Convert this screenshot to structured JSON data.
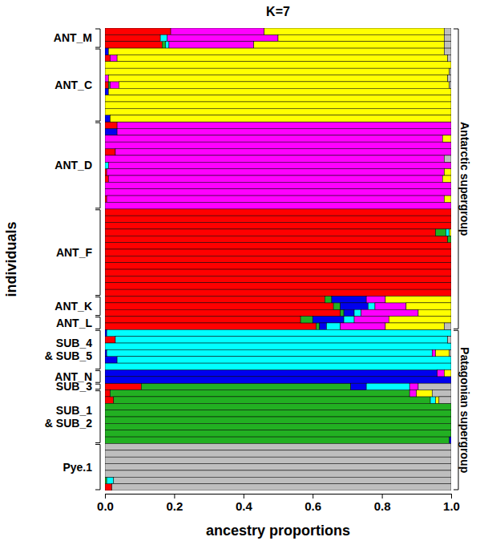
{
  "chart_data": {
    "type": "bar",
    "title": "K=7",
    "x_label": "ancestry proportions",
    "y_label": "individuals",
    "orientation": "horizontal",
    "stacked": true,
    "tick_labels": "x",
    "xlim": [
      0,
      1
    ],
    "xticks": [
      {
        "value": 0,
        "label": "0.0"
      },
      {
        "value": 0.2,
        "label": "0.2"
      },
      {
        "value": 0.4,
        "label": "0.4"
      },
      {
        "value": 0.6,
        "label": "0.6"
      },
      {
        "value": 0.8,
        "label": "0.8"
      },
      {
        "value": 1,
        "label": "1.0"
      }
    ],
    "categories": [
      null,
      null,
      null,
      null,
      null,
      null,
      null,
      null,
      null,
      null,
      null,
      null,
      null,
      null,
      null,
      null,
      null,
      null,
      null,
      null,
      null,
      null,
      null,
      null,
      null,
      null,
      null,
      null,
      null,
      null,
      null,
      null,
      null,
      null,
      null,
      null,
      null,
      null,
      null,
      null,
      null,
      null,
      null,
      null,
      null,
      null,
      null,
      null,
      null,
      null,
      null,
      null,
      null,
      null,
      null,
      null,
      null,
      null,
      null,
      null,
      null,
      null,
      null,
      null,
      null,
      null,
      null,
      null,
      null
    ],
    "series": [
      {
        "color": "#ff0000",
        "values": [
          0.19,
          0.16,
          0.165,
          0,
          0.015,
          0,
          0,
          0,
          0.01,
          0,
          0,
          0,
          0,
          0,
          0.035,
          0,
          0,
          0,
          0.03,
          0,
          0,
          0.005,
          0.01,
          0,
          0,
          0.005,
          0,
          1,
          1,
          1,
          0.955,
          0.99,
          1,
          1,
          1,
          1,
          1,
          1,
          1,
          1,
          0.635,
          0.66,
          0.68,
          0.565,
          0.61,
          0,
          0.03,
          0,
          0,
          0,
          0,
          0,
          0,
          0.105,
          0.015,
          0.025,
          0,
          0,
          0,
          0,
          0,
          0,
          0,
          0,
          0,
          0,
          0,
          0,
          0.02
        ]
      },
      {
        "color": "#22b022",
        "values": [
          0,
          0,
          0.01,
          0,
          0,
          0,
          0,
          0,
          0.005,
          0,
          0,
          0,
          0,
          0,
          0,
          0,
          0,
          0,
          0,
          0,
          0,
          0,
          0,
          0,
          0,
          0,
          0,
          0,
          0,
          0,
          0.03,
          0.01,
          0,
          0,
          0,
          0,
          0,
          0,
          0,
          0,
          0.02,
          0.02,
          0.01,
          0.035,
          0.01,
          0,
          0,
          0,
          0,
          0,
          0,
          0,
          0,
          0.605,
          0.865,
          0.915,
          1,
          1,
          1,
          1,
          1,
          0.995,
          0,
          0,
          0,
          0,
          0,
          0.005,
          0
        ]
      },
      {
        "color": "#0000ee",
        "values": [
          0,
          0,
          0,
          0.01,
          0,
          0,
          0,
          0,
          0,
          0.01,
          0,
          0,
          0,
          0.015,
          0,
          0.035,
          0,
          0,
          0,
          0,
          0,
          0,
          0,
          0,
          0,
          0,
          0,
          0,
          0,
          0,
          0,
          0,
          0,
          0,
          0,
          0,
          0,
          0,
          0,
          0,
          0.1,
          0.08,
          0.03,
          0.09,
          0.02,
          0.005,
          0,
          0,
          0.005,
          0.035,
          0,
          0.96,
          1,
          0.045,
          0,
          0,
          0,
          0,
          0,
          0,
          0,
          0.005,
          0,
          0,
          0,
          0,
          0,
          0,
          0
        ]
      },
      {
        "color": "#00ffff",
        "values": [
          0,
          0.02,
          0.01,
          0,
          0,
          0,
          0,
          0,
          0,
          0,
          0,
          0,
          0,
          0,
          0,
          0,
          0,
          0,
          0,
          0,
          0.01,
          0,
          0,
          0,
          0,
          0,
          0,
          0,
          0,
          0,
          0.01,
          0,
          0,
          0,
          0,
          0,
          0,
          0,
          0,
          0,
          0,
          0.02,
          0.02,
          0.03,
          0.04,
          0.995,
          0.96,
          1,
          0.94,
          0.965,
          1,
          0,
          0,
          0.125,
          0,
          0.015,
          0,
          0,
          0,
          0,
          0,
          0,
          0,
          0,
          0,
          0,
          0,
          0.02,
          0
        ]
      },
      {
        "color": "#ff00ff",
        "values": [
          0.27,
          0.32,
          0.245,
          0,
          0.02,
          0,
          0,
          0.01,
          0.025,
          0,
          0,
          0,
          0,
          0,
          0.965,
          0.965,
          0.975,
          1,
          0.97,
          0.98,
          0.99,
          0.975,
          0.965,
          1,
          1,
          0.975,
          1,
          0,
          0,
          0,
          0,
          0,
          0,
          0,
          0,
          0,
          0,
          0,
          0,
          0,
          0.055,
          0.09,
          0.165,
          0.1,
          0.13,
          0,
          0,
          0,
          0.01,
          0,
          0,
          0.02,
          0,
          0.025,
          0.02,
          0,
          0,
          0,
          0,
          0,
          0,
          0,
          0,
          0,
          0,
          0,
          0,
          0,
          0
        ]
      },
      {
        "color": "#ffff00",
        "values": [
          0.52,
          0.48,
          0.55,
          0.97,
          0.955,
          1,
          0.995,
          0.98,
          0.955,
          0.99,
          1,
          1,
          1,
          0.985,
          0,
          0,
          0.025,
          0,
          0,
          0,
          0,
          0.02,
          0.025,
          0,
          0,
          0.02,
          0,
          0,
          0,
          0,
          0.005,
          0,
          0,
          0,
          0,
          0,
          0,
          0,
          0,
          0,
          0.19,
          0.13,
          0.095,
          0.18,
          0.17,
          0,
          0,
          0,
          0.04,
          0,
          0,
          0.02,
          0,
          0,
          0.045,
          0.01,
          0,
          0,
          0,
          0,
          0,
          0,
          0,
          0,
          0,
          0,
          0,
          0,
          0
        ]
      },
      {
        "color": "#bebebe",
        "values": [
          0.02,
          0.02,
          0.02,
          0.02,
          0.01,
          0,
          0.005,
          0.01,
          0.005,
          0,
          0,
          0,
          0,
          0,
          0,
          0,
          0,
          0,
          0,
          0.02,
          0,
          0,
          0,
          0,
          0,
          0,
          0,
          0,
          0,
          0,
          0,
          0,
          0,
          0,
          0,
          0,
          0,
          0,
          0,
          0,
          0,
          0,
          0,
          0,
          0.02,
          0,
          0.01,
          0,
          0.005,
          0,
          0,
          0,
          0,
          0.095,
          0.055,
          0.035,
          0,
          0,
          0,
          0,
          0,
          0,
          1,
          1,
          1,
          1,
          1,
          0.975,
          0.98
        ]
      }
    ],
    "groups": [
      {
        "label": [
          "ANT_M"
        ],
        "size": 3
      },
      {
        "label": [
          "ANT_C"
        ],
        "size": 11
      },
      {
        "label": [
          "ANT_D"
        ],
        "size": 13
      },
      {
        "label": [
          "ANT_F"
        ],
        "size": 13
      },
      {
        "label": [
          "ANT_K"
        ],
        "size": 3
      },
      {
        "label": [
          "ANT_L"
        ],
        "size": 2
      },
      {
        "label": [
          "SUB_4",
          "& SUB_5"
        ],
        "size": 6
      },
      {
        "label": [
          "ANT_N"
        ],
        "size": 2
      },
      {
        "label": [
          "SUB_3"
        ],
        "size": 1
      },
      {
        "label": [
          "SUB_1",
          "& SUB_2"
        ],
        "size": 8
      },
      {
        "label": [
          "Pye.1"
        ],
        "size": 7
      }
    ],
    "supergroups": [
      {
        "label": "Antarctic supergroup",
        "groups": 6
      },
      {
        "label": "Patagonian supergroup",
        "groups": 5
      }
    ]
  }
}
